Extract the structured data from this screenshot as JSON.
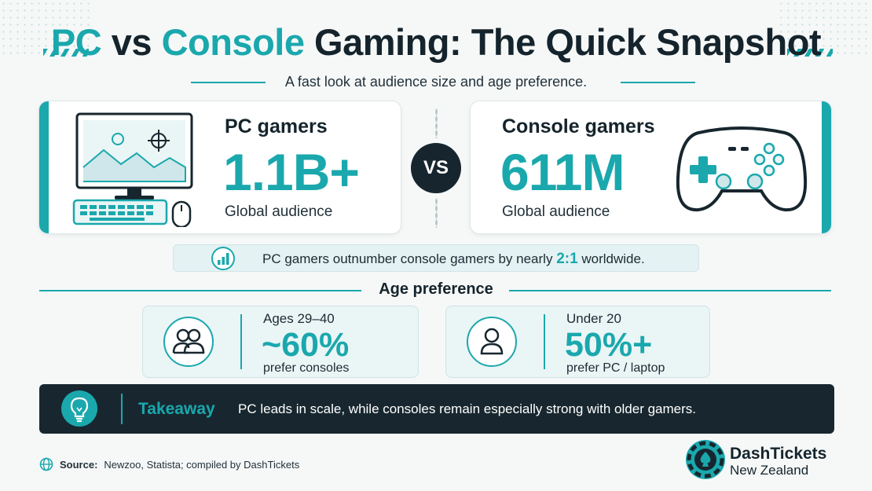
{
  "header": {
    "title_part1": "PC",
    "title_part2": " vs ",
    "title_part3": "Console",
    "title_part4": " Gaming: The Quick Snapshot",
    "subtitle": "A fast look at audience size and age preference."
  },
  "pc_card": {
    "label": "PC gamers",
    "number": "1.1B+",
    "caption": "Global audience",
    "icon": "desktop-computer-icon"
  },
  "vs_badge": "VS",
  "console_card": {
    "label": "Console gamers",
    "number": "611M",
    "caption": "Global audience",
    "icon": "gamepad-icon"
  },
  "insight": {
    "text_before": "PC gamers outnumber console gamers by nearly ",
    "highlight": "2:1",
    "text_after": " worldwide.",
    "icon": "bar-chart-icon"
  },
  "age_section": {
    "title": "Age preference",
    "cards": [
      {
        "label": "Ages 29–40",
        "value": "~60%",
        "sub": "prefer consoles",
        "icon": "group-users-icon"
      },
      {
        "label": "Under 20",
        "value": "50%+",
        "sub": "prefer PC / laptop",
        "icon": "user-icon"
      }
    ]
  },
  "takeaway": {
    "label": "Takeaway",
    "message": "PC leads in scale, while consoles remain especially strong with older gamers.",
    "icon": "lightbulb-icon"
  },
  "source": {
    "label": "Source:",
    "text": "Newzoo, Statista; compiled by DashTickets",
    "icon": "globe-icon"
  },
  "brand": {
    "name": "DashTickets",
    "region": "New Zealand",
    "icon": "poker-chip-spade-icon"
  },
  "colors": {
    "accent": "#1aa8ad",
    "dark": "#18272f",
    "background": "#f6f8f8"
  }
}
